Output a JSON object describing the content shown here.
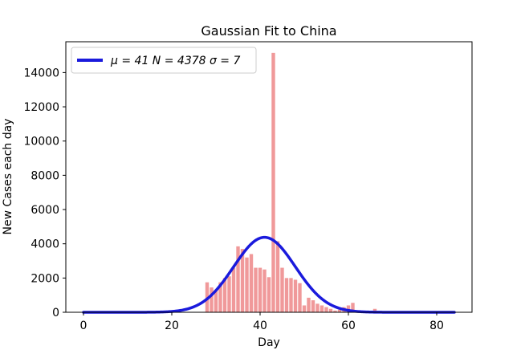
{
  "chart_data": {
    "type": "bar",
    "title": "Gaussian Fit to China",
    "xlabel": "Day",
    "ylabel": "New Cases each day",
    "xlim": [
      -4,
      88
    ],
    "ylim": [
      0,
      15800
    ],
    "xticks": [
      0,
      20,
      40,
      60,
      80
    ],
    "yticks": [
      0,
      2000,
      4000,
      6000,
      8000,
      10000,
      12000,
      14000
    ],
    "grid": false,
    "legend": {
      "placement": "top-left",
      "entries": [
        {
          "label": "μ = 41   N = 4378   σ = 7",
          "color": "#1a1adc"
        }
      ]
    },
    "colors": {
      "bars": "#f0999a",
      "fit": "#1a1adc"
    },
    "bars": {
      "x": [
        0,
        1,
        2,
        3,
        4,
        5,
        6,
        7,
        8,
        9,
        10,
        11,
        12,
        13,
        14,
        15,
        16,
        17,
        18,
        19,
        20,
        21,
        22,
        23,
        24,
        25,
        26,
        27,
        28,
        29,
        30,
        31,
        32,
        33,
        34,
        35,
        36,
        37,
        38,
        39,
        40,
        41,
        42,
        43,
        44,
        45,
        46,
        47,
        48,
        49,
        50,
        51,
        52,
        53,
        54,
        55,
        56,
        57,
        58,
        59,
        60,
        61,
        62,
        63,
        64,
        65,
        66,
        67,
        68,
        69,
        70,
        71,
        72,
        73,
        74,
        75,
        76,
        77,
        78,
        79,
        80,
        81,
        82,
        83,
        84
      ],
      "values": [
        0,
        0,
        0,
        0,
        0,
        0,
        0,
        0,
        0,
        0,
        0,
        0,
        0,
        0,
        0,
        0,
        0,
        0,
        0,
        0,
        0,
        0,
        0,
        0,
        0,
        0,
        0,
        0,
        1750,
        1450,
        1300,
        1750,
        2000,
        2100,
        2600,
        3850,
        3700,
        3200,
        3400,
        2600,
        2600,
        2500,
        2050,
        15150,
        4150,
        2600,
        2000,
        2000,
        1900,
        1700,
        400,
        850,
        700,
        500,
        400,
        300,
        200,
        100,
        150,
        300,
        400,
        550,
        100,
        50,
        0,
        30,
        200,
        0,
        0,
        0,
        0,
        0,
        0,
        0,
        0,
        0,
        0,
        0,
        0,
        0,
        0,
        0,
        0,
        0,
        0
      ]
    },
    "fit": {
      "mu": 41,
      "N": 4378,
      "sigma": 7,
      "x_range": [
        0,
        84
      ]
    }
  }
}
